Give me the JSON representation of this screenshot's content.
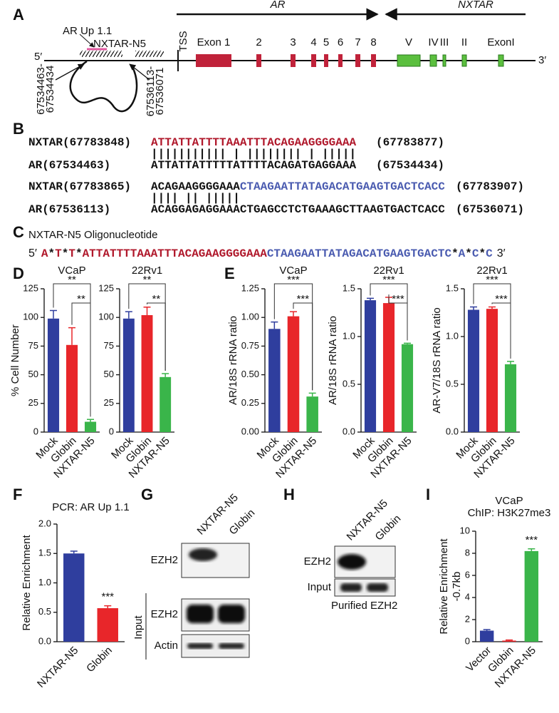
{
  "panel_labels": [
    "A",
    "B",
    "C",
    "D",
    "E",
    "F",
    "G",
    "H",
    "I"
  ],
  "gene_map": {
    "ar_label": "AR",
    "nxtar_label": "NXTAR",
    "tss": "TSS",
    "five": "5′",
    "three": "3′",
    "ar_up": "AR Up 1.1",
    "oligo": "NXTAR-N5",
    "coord_left": [
      "67534463-",
      "67534434"
    ],
    "coord_right": [
      "67536113-",
      "67536071"
    ],
    "ar_exons": [
      "Exon 1",
      "2",
      "3",
      "4",
      "5",
      "6",
      "7",
      "8"
    ],
    "nxtar_exons": [
      "V",
      "IV",
      "III",
      "II",
      "ExonI"
    ],
    "ar_color": "#c0223a",
    "nxtar_color": "#5bbf3e"
  },
  "alignment": [
    {
      "top_name": "NXTAR(67783848)",
      "top_segments": [
        {
          "text": "ATTATTATTTTAAATTTACAGAAGGGGAAA",
          "color": "#b0182b"
        }
      ],
      "top_end": "(67783877)",
      "bars": "||||||||||| | |||||||| | |||||",
      "bottom_name": "AR(67534463)",
      "bottom_seq": "ATTATTATTTTTATTTTACAGATGAGGAAA",
      "bottom_end": "(67534434)"
    },
    {
      "top_name": "NXTAR(67783865)",
      "top_segments": [
        {
          "text": "ACAGAAGGGGAAA",
          "color": "#111111"
        },
        {
          "text": "CTAAGAATTATAGACATGAAGTGACTCACC",
          "color": "#4a5bb0"
        }
      ],
      "top_end": "(67783907)",
      "bars": "|||| || |||||",
      "bottom_name": "AR(67536113)",
      "bottom_seq": "ACAGGAGAGGAAACTGAGCCTCTGAAAGCTTAAGTGACTCACC",
      "bottom_end": "(67536071)"
    }
  ],
  "oligonucleotide": {
    "title": "NXTAR-N5 Oligonucleotide",
    "five": "5′",
    "three": "3′",
    "segments": [
      {
        "text": "A",
        "color": "#b0182b"
      },
      {
        "text": "*",
        "color": "#111111"
      },
      {
        "text": "T",
        "color": "#b0182b"
      },
      {
        "text": "*",
        "color": "#111111"
      },
      {
        "text": "T",
        "color": "#b0182b"
      },
      {
        "text": "*",
        "color": "#111111"
      },
      {
        "text": "ATTATTTTAAATTTACAGAAGGGGAAA",
        "color": "#b0182b"
      },
      {
        "text": "CTAAGAATTATAGACATGAAGTGACTC",
        "color": "#4a5bb0"
      },
      {
        "text": "*",
        "color": "#111111"
      },
      {
        "text": "A",
        "color": "#4a5bb0"
      },
      {
        "text": "*",
        "color": "#111111"
      },
      {
        "text": "C",
        "color": "#4a5bb0"
      },
      {
        "text": "*",
        "color": "#111111"
      },
      {
        "text": "C",
        "color": "#4a5bb0"
      }
    ]
  },
  "chart_data": [
    {
      "type": "bar",
      "title": "VCaP",
      "ylabel": "% Cell Number",
      "categories": [
        "Mock",
        "Globin",
        "NXTAR-N5"
      ],
      "values": [
        99,
        76,
        9
      ],
      "errors": [
        7,
        15,
        2
      ],
      "colors": [
        "#2f3e9e",
        "#e8262a",
        "#3ab54a"
      ],
      "ylim": [
        0,
        125
      ],
      "yticks": [
        0,
        25,
        50,
        75,
        100,
        125
      ],
      "annotations": [
        {
          "label": "**",
          "between": [
            0,
            2
          ]
        },
        {
          "label": "**",
          "between": [
            1,
            2
          ]
        }
      ]
    },
    {
      "type": "bar",
      "title": "22Rv1",
      "categories": [
        "Mock",
        "Globin",
        "NXTAR-N5"
      ],
      "values": [
        99,
        102,
        48
      ],
      "errors": [
        6,
        7,
        3
      ],
      "colors": [
        "#2f3e9e",
        "#e8262a",
        "#3ab54a"
      ],
      "ylim": [
        0,
        125
      ],
      "yticks": [
        0,
        25,
        50,
        75,
        100,
        125
      ],
      "annotations": [
        {
          "label": "**",
          "between": [
            0,
            2
          ]
        },
        {
          "label": "**",
          "between": [
            1,
            2
          ]
        }
      ]
    },
    {
      "type": "bar",
      "title": "VCaP",
      "ylabel": "AR/18S rRNA ratio",
      "categories": [
        "Mock",
        "Globin",
        "NXTAR-N5"
      ],
      "values": [
        0.9,
        1.01,
        0.31
      ],
      "errors": [
        0.06,
        0.04,
        0.03
      ],
      "colors": [
        "#2f3e9e",
        "#e8262a",
        "#3ab54a"
      ],
      "ylim": [
        0,
        1.25
      ],
      "yticks": [
        {
          "value": 0,
          "label": "0.00"
        },
        0.25,
        {
          "value": 0.5,
          "label": "0.50"
        },
        0.75,
        {
          "value": 1,
          "label": "1.00"
        },
        1.25
      ],
      "annotations": [
        {
          "label": "***",
          "between": [
            0,
            2
          ]
        },
        {
          "label": "***",
          "between": [
            1,
            2
          ]
        }
      ]
    },
    {
      "type": "bar",
      "title": "22Rv1",
      "ylabel": "AR/18S rRNA ratio",
      "categories": [
        "Mock",
        "Globin",
        "NXTAR-N5"
      ],
      "values": [
        1.38,
        1.35,
        0.92
      ],
      "errors": [
        0.02,
        0.06,
        0.01
      ],
      "colors": [
        "#2f3e9e",
        "#e8262a",
        "#3ab54a"
      ],
      "ylim": [
        0,
        1.5
      ],
      "yticks": [
        {
          "value": 0,
          "label": "0.0"
        },
        0.5,
        {
          "value": 1,
          "label": "1.0"
        },
        1.5
      ],
      "annotations": [
        {
          "label": "***",
          "between": [
            0,
            2
          ]
        },
        {
          "label": "***",
          "between": [
            1,
            2
          ]
        }
      ]
    },
    {
      "type": "bar",
      "title": "22Rv1",
      "ylabel": "AR-V7/18S rRNA ratio",
      "categories": [
        "Mock",
        "Globin",
        "NXTAR-N5"
      ],
      "values": [
        1.28,
        1.29,
        0.71
      ],
      "errors": [
        0.03,
        0.02,
        0.03
      ],
      "colors": [
        "#2f3e9e",
        "#e8262a",
        "#3ab54a"
      ],
      "ylim": [
        0,
        1.5
      ],
      "yticks": [
        {
          "value": 0,
          "label": "0.0"
        },
        0.5,
        {
          "value": 1,
          "label": "1.0"
        },
        1.5
      ],
      "annotations": [
        {
          "label": "***",
          "between": [
            0,
            2
          ]
        },
        {
          "label": "***",
          "between": [
            1,
            2
          ]
        }
      ]
    },
    {
      "type": "bar",
      "title": "PCR: AR Up 1.1",
      "ylabel": "Relative Enrichment",
      "categories": [
        "NXTAR-N5",
        "Globin"
      ],
      "values": [
        1.5,
        0.57
      ],
      "errors": [
        0.04,
        0.04
      ],
      "colors": [
        "#2f3e9e",
        "#e8262a"
      ],
      "ylim": [
        0,
        2
      ],
      "yticks": [
        {
          "value": 0,
          "label": "0.0"
        },
        0.5,
        {
          "value": 1,
          "label": "1.0"
        },
        1.5,
        {
          "value": 2,
          "label": "2.0"
        }
      ],
      "annotations": [
        {
          "label": "***",
          "over": 1
        }
      ]
    },
    {
      "type": "bar",
      "title": "VCaP",
      "subtitle": "ChIP: H3K27me3",
      "ylabel": "Relative Enrichment",
      "ylabel2": "-0.7kb",
      "categories": [
        "Vector",
        "Globin",
        "NXTAR-N5"
      ],
      "values": [
        1.0,
        0.1,
        8.2
      ],
      "errors": [
        0.1,
        0.05,
        0.2
      ],
      "colors": [
        "#2f3e9e",
        "#e8262a",
        "#3ab54a"
      ],
      "ylim": [
        0,
        10
      ],
      "yticks": [
        0,
        2,
        4,
        6,
        8,
        10
      ],
      "annotations": [
        {
          "label": "***",
          "over": 2
        }
      ]
    }
  ],
  "blot_g": {
    "lanes": [
      "NXTAR-N5",
      "Globin"
    ],
    "rows": [
      "EZH2",
      "EZH2",
      "Actin"
    ],
    "group": "Input"
  },
  "blot_h": {
    "lanes": [
      "NXTAR-N5",
      "Globin"
    ],
    "rows": [
      "EZH2",
      "Input"
    ],
    "caption": "Purified EZH2"
  }
}
